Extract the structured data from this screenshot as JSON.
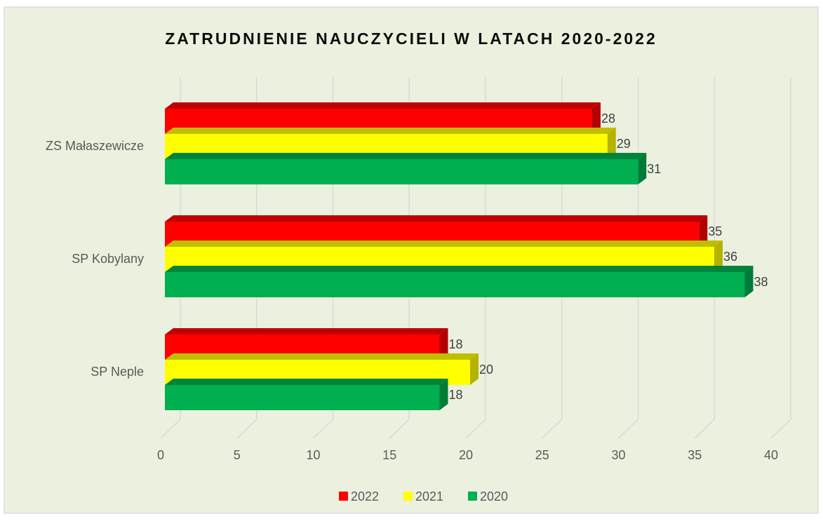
{
  "chart_data": {
    "type": "bar",
    "orientation": "horizontal",
    "three_d": true,
    "title": "ZATRUDNIENIE NAUCZYCIELI W LATACH 2020-2022",
    "categories": [
      "ZS Małaszewicze",
      "SP Kobylany",
      "SP Neple"
    ],
    "series": [
      {
        "name": "2022",
        "color": "#ff0000",
        "values": [
          28,
          35,
          18
        ]
      },
      {
        "name": "2021",
        "color": "#ffff00",
        "values": [
          29,
          36,
          20
        ]
      },
      {
        "name": "2020",
        "color": "#00b050",
        "values": [
          31,
          38,
          18
        ]
      }
    ],
    "xlim": [
      0,
      40
    ],
    "xticks": [
      0,
      5,
      10,
      15,
      20,
      25,
      30,
      35,
      40
    ],
    "grid": true,
    "legend": "bottom",
    "data_labels": true
  }
}
